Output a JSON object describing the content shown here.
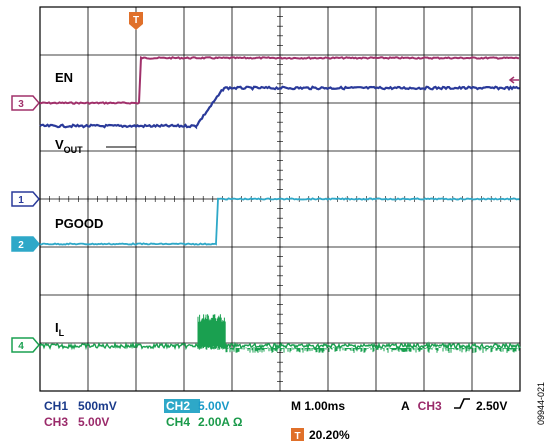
{
  "traces": {
    "en": {
      "label": "EN"
    },
    "vout": {
      "label_main": "V",
      "label_sub": "OUT"
    },
    "pgood": {
      "label": "PGOOD"
    },
    "il": {
      "label_main": "I",
      "label_sub": "L"
    }
  },
  "channel_markers": {
    "ch3": "3",
    "ch1": "1",
    "ch2": "2",
    "ch4": "4"
  },
  "trigger_marker": "T",
  "settings": {
    "ch1": {
      "name": "CH1",
      "scale": "500mV"
    },
    "ch3": {
      "name": "CH3",
      "scale": "5.00V"
    },
    "ch2": {
      "name": "CH2",
      "scale": "5.00V"
    },
    "ch4": {
      "name": "CH4",
      "scale": "2.00A Ω"
    },
    "timebase": "M 1.00ms",
    "trigger": {
      "prefix": "A",
      "source": "CH3",
      "level": "2.50V"
    },
    "trigger_position": "20.20%"
  },
  "figure_id": "09944-021",
  "colors": {
    "ch1": "#2a3a9a",
    "ch2": "#2ea8c8",
    "ch3": "#a0306a",
    "ch4": "#1aa050",
    "trigger": "#e0702a",
    "label_blue": "#1a3a8a",
    "label_magenta": "#9a2a6a",
    "label_cyan": "#1a9ac8",
    "label_green": "#1a9a4a"
  },
  "icons": {
    "trigger_slope": "rising-edge-icon",
    "trigger_level": "left-arrow-icon"
  }
}
